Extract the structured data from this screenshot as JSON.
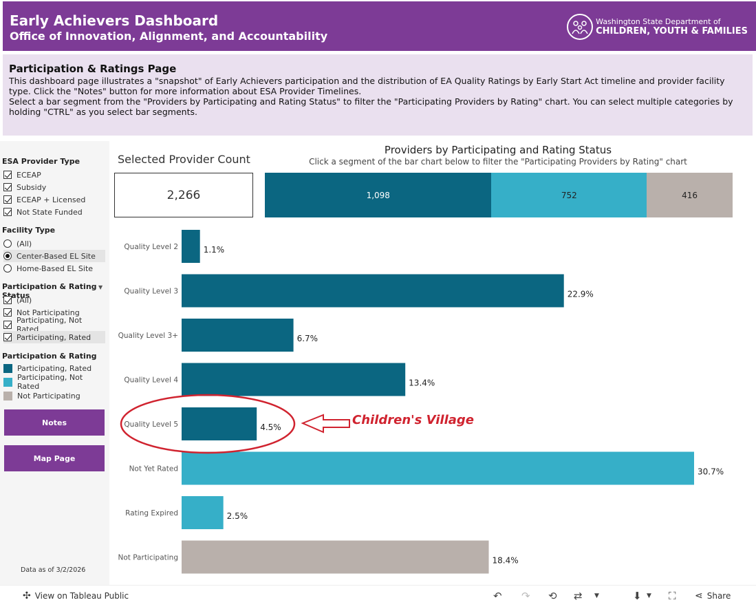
{
  "header": {
    "title": "Early Achievers Dashboard",
    "subtitle": "Office of Innovation, Alignment, and Accountability",
    "logo_line1": "Washington State Department of",
    "logo_line2": "CHILDREN, YOUTH & FAMILIES"
  },
  "description": {
    "title": "Participation & Ratings Page",
    "para1": "This dashboard page illustrates a \"snapshot\" of Early Achievers participation and the distribution of EA Quality Ratings by Early Start Act timeline and provider facility type. Click the \"Notes\" button for more information about ESA Provider Timelines.",
    "para2": "Select a bar segment from the \"Providers by Participating and Rating Status\" to filter the \"Participating Providers by Rating\" chart. You can select multiple categories by holding \"CTRL\" as you select bar segments."
  },
  "sidebar": {
    "esa_heading": "ESA Provider Type",
    "esa_options": [
      "ECEAP",
      "Subsidy",
      "ECEAP + Licensed",
      "Not State Funded"
    ],
    "facility_heading": "Facility Type",
    "facility_options": [
      "(All)",
      "Center-Based EL Site",
      "Home-Based EL Site"
    ],
    "facility_selected": "Center-Based EL Site",
    "status_heading": "Participation & Rating Status",
    "status_options": [
      "(All)",
      "Not Participating",
      "Participating, Not Rated",
      "Participating, Rated"
    ],
    "legend_heading": "Participation & Rating",
    "legend": [
      {
        "label": "Participating, Rated",
        "color": "#0b6681"
      },
      {
        "label": "Participating, Not Rated",
        "color": "#36afc8"
      },
      {
        "label": "Not Participating",
        "color": "#b9b0ab"
      }
    ],
    "notes_button": "Notes",
    "map_button": "Map Page",
    "data_as_of": "Data as of 3/2/2026"
  },
  "count": {
    "title": "Selected Provider Count",
    "value": "2,266"
  },
  "stacked": {
    "title": "Providers by Participating and Rating Status",
    "subtitle": "Click a segment of the bar chart below to filter the \"Participating Providers by Rating\" chart",
    "segments": [
      {
        "label": "1,098",
        "value": 1098,
        "color": "#0b6681",
        "text_color": "#ffffff"
      },
      {
        "label": "752",
        "value": 752,
        "color": "#36afc8",
        "text_color": "#222222"
      },
      {
        "label": "416",
        "value": 416,
        "color": "#b9b0ab",
        "text_color": "#222222"
      }
    ]
  },
  "chart_data": {
    "type": "bar",
    "orientation": "horizontal",
    "categories": [
      "Quality Level 2",
      "Quality Level 3",
      "Quality Level 3+",
      "Quality Level 4",
      "Quality Level 5",
      "Not Yet Rated",
      "Rating Expired",
      "Not Participating"
    ],
    "values": [
      1.1,
      22.9,
      6.7,
      13.4,
      4.5,
      30.7,
      2.5,
      18.4
    ],
    "labels": [
      "1.1%",
      "22.9%",
      "6.7%",
      "13.4%",
      "4.5%",
      "30.7%",
      "2.5%",
      "18.4%"
    ],
    "colors": [
      "#0b6681",
      "#0b6681",
      "#0b6681",
      "#0b6681",
      "#0b6681",
      "#36afc8",
      "#36afc8",
      "#b9b0ab"
    ],
    "xlim": [
      0,
      30.7
    ]
  },
  "annotation": {
    "text": "Children's Village",
    "target": "Quality Level 5",
    "color": "#d0232f"
  },
  "footer": {
    "tableau_link": "View on Tableau Public",
    "share": "Share"
  }
}
